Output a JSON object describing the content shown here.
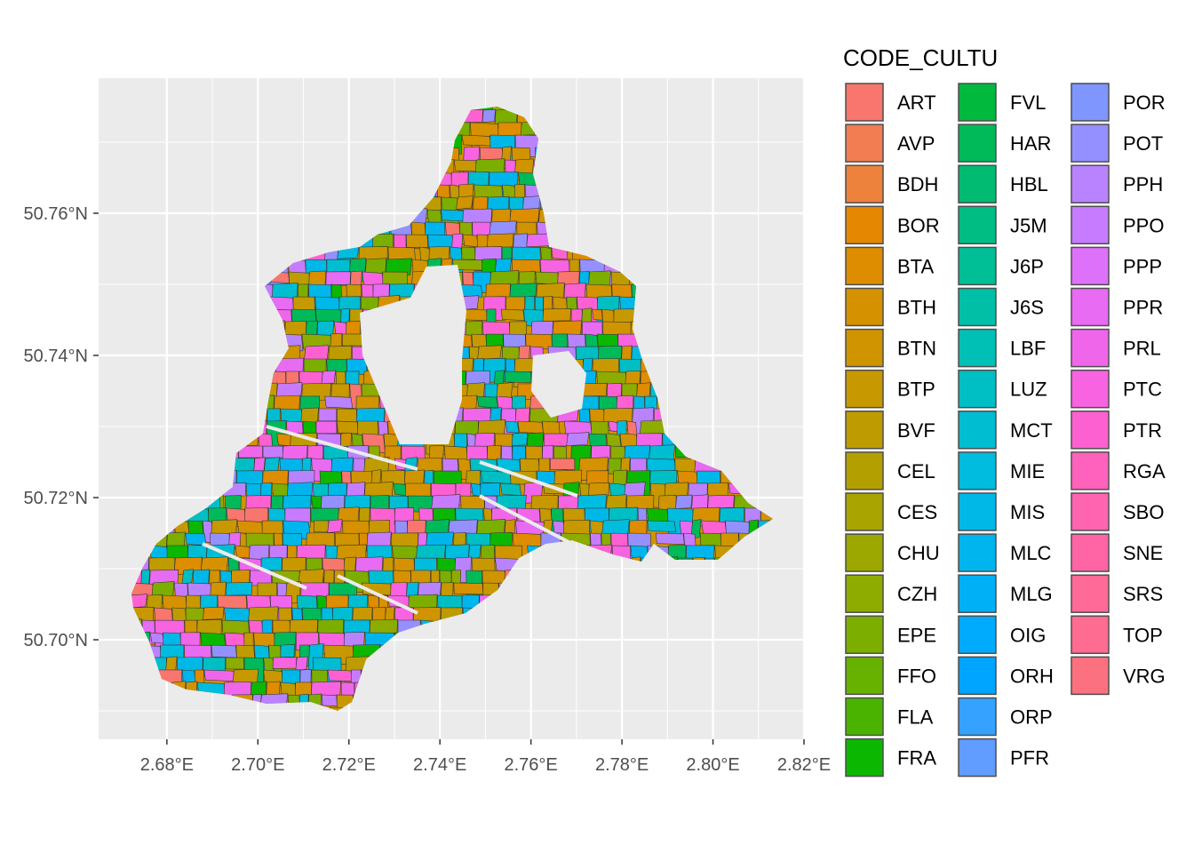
{
  "chart_data": {
    "type": "choropleth-map",
    "grid": true,
    "legend_position": "right",
    "panel_background": "#ebebeb",
    "x_ticks": [
      {
        "value": 2.68,
        "label": "2.68°E"
      },
      {
        "value": 2.7,
        "label": "2.70°E"
      },
      {
        "value": 2.72,
        "label": "2.72°E"
      },
      {
        "value": 2.74,
        "label": "2.74°E"
      },
      {
        "value": 2.76,
        "label": "2.76°E"
      },
      {
        "value": 2.78,
        "label": "2.78°E"
      },
      {
        "value": 2.8,
        "label": "2.80°E"
      },
      {
        "value": 2.82,
        "label": "2.82°E"
      }
    ],
    "y_ticks": [
      {
        "value": 50.7,
        "label": "50.70°N"
      },
      {
        "value": 50.72,
        "label": "50.72°N"
      },
      {
        "value": 50.74,
        "label": "50.74°N"
      },
      {
        "value": 50.76,
        "label": "50.76°N"
      }
    ],
    "xlim": [
      2.665,
      2.82
    ],
    "ylim": [
      50.686,
      50.779
    ],
    "legend": {
      "title": "CODE_CULTU",
      "items": [
        {
          "code": "ART",
          "color": "#F8766D"
        },
        {
          "code": "AVP",
          "color": "#F27D52"
        },
        {
          "code": "BDH",
          "color": "#EC823C"
        },
        {
          "code": "BOR",
          "color": "#E58700"
        },
        {
          "code": "BTA",
          "color": "#DE8C00"
        },
        {
          "code": "BTH",
          "color": "#D69100"
        },
        {
          "code": "BTN",
          "color": "#CF9400"
        },
        {
          "code": "BTP",
          "color": "#C79800"
        },
        {
          "code": "BVF",
          "color": "#BE9C00"
        },
        {
          "code": "CEL",
          "color": "#B49F00"
        },
        {
          "code": "CES",
          "color": "#A9A400"
        },
        {
          "code": "CHU",
          "color": "#9CA700"
        },
        {
          "code": "CZH",
          "color": "#8EAB00"
        },
        {
          "code": "EPE",
          "color": "#7CAE00"
        },
        {
          "code": "FFO",
          "color": "#67B100"
        },
        {
          "code": "FLA",
          "color": "#4AB300"
        },
        {
          "code": "FRA",
          "color": "#0CB702"
        },
        {
          "code": "FVL",
          "color": "#00B93D"
        },
        {
          "code": "HAR",
          "color": "#00BA5A"
        },
        {
          "code": "HBL",
          "color": "#00BB71"
        },
        {
          "code": "J5M",
          "color": "#00BD84"
        },
        {
          "code": "J6P",
          "color": "#00BE96"
        },
        {
          "code": "J6S",
          "color": "#00BFA7"
        },
        {
          "code": "LBF",
          "color": "#00C0B6"
        },
        {
          "code": "LUZ",
          "color": "#00BFC4"
        },
        {
          "code": "MCT",
          "color": "#00BDD2"
        },
        {
          "code": "MIE",
          "color": "#00BCDE"
        },
        {
          "code": "MIS",
          "color": "#00B8E7"
        },
        {
          "code": "MLC",
          "color": "#00B5EE"
        },
        {
          "code": "MLG",
          "color": "#00B0F6"
        },
        {
          "code": "OIG",
          "color": "#00ABFD"
        },
        {
          "code": "ORH",
          "color": "#00A5FF"
        },
        {
          "code": "ORP",
          "color": "#35A2FF"
        },
        {
          "code": "PFR",
          "color": "#619CFF"
        },
        {
          "code": "POR",
          "color": "#7F96FF"
        },
        {
          "code": "POT",
          "color": "#9590FF"
        },
        {
          "code": "PPH",
          "color": "#B983FF"
        },
        {
          "code": "PPO",
          "color": "#C77CFF"
        },
        {
          "code": "PPP",
          "color": "#DE71F9"
        },
        {
          "code": "PPR",
          "color": "#E76BF3"
        },
        {
          "code": "PRL",
          "color": "#F066EA"
        },
        {
          "code": "PTC",
          "color": "#F763E0"
        },
        {
          "code": "PTR",
          "color": "#FD61D1"
        },
        {
          "code": "RGA",
          "color": "#FF62BC"
        },
        {
          "code": "SBO",
          "color": "#FF64B0"
        },
        {
          "code": "SNE",
          "color": "#FF65A4"
        },
        {
          "code": "SRS",
          "color": "#FF6A98"
        },
        {
          "code": "TOP",
          "color": "#FF6C91"
        },
        {
          "code": "VRG",
          "color": "#FC717F"
        }
      ]
    },
    "dominant_colors": [
      "#CF9400",
      "#00BCDE",
      "#F066EA",
      "#C77CFF",
      "#7CAE00",
      "#F8766D"
    ]
  }
}
